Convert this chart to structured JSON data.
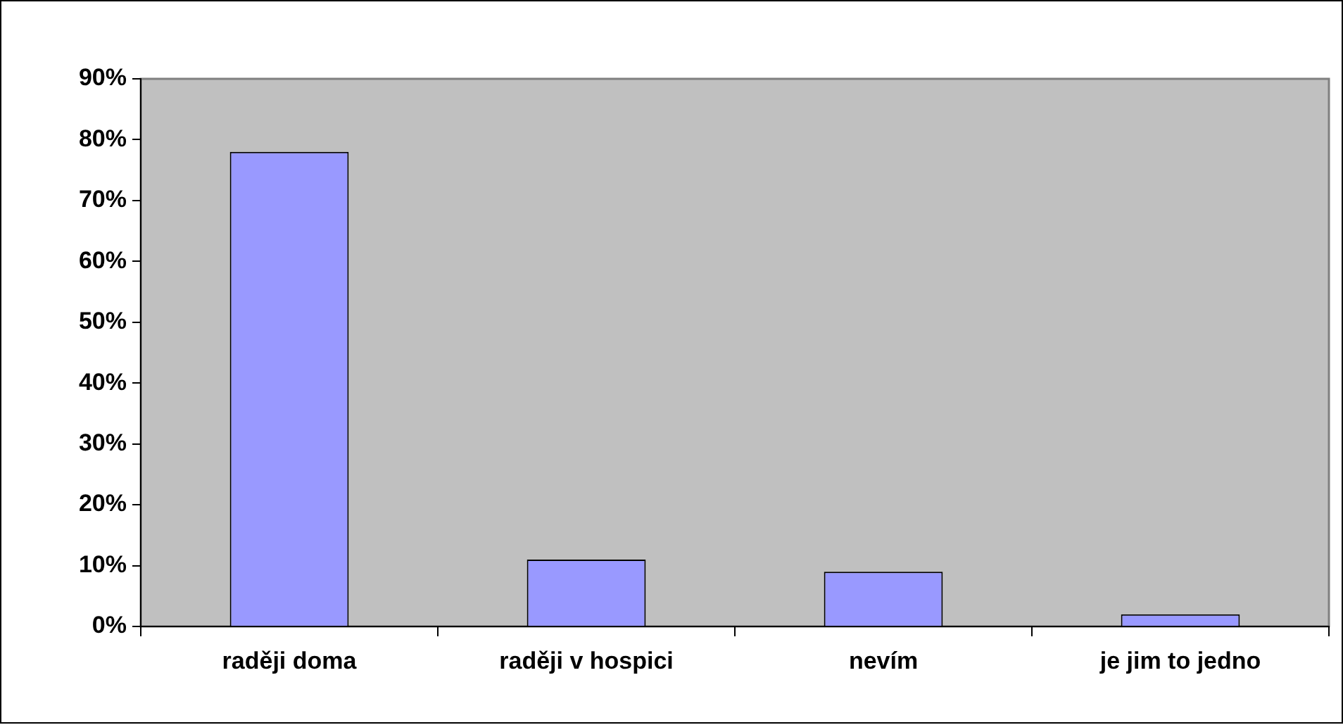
{
  "chart_data": {
    "type": "bar",
    "categories": [
      "raději doma",
      "raději v hospici",
      "nevím",
      "je jim to jedno"
    ],
    "values": [
      78,
      11,
      9,
      2
    ],
    "color": "#9999ff",
    "ylim": [
      0,
      90
    ],
    "yticks": [
      {
        "value": 0,
        "label": "0%"
      },
      {
        "value": 10,
        "label": "10%"
      },
      {
        "value": 20,
        "label": "20%"
      },
      {
        "value": 30,
        "label": "30%"
      },
      {
        "value": 40,
        "label": "40%"
      },
      {
        "value": 50,
        "label": "50%"
      },
      {
        "value": 60,
        "label": "60%"
      },
      {
        "value": 70,
        "label": "70%"
      },
      {
        "value": 80,
        "label": "80%"
      },
      {
        "value": 90,
        "label": "90%"
      }
    ],
    "grid": false,
    "legend": false
  }
}
